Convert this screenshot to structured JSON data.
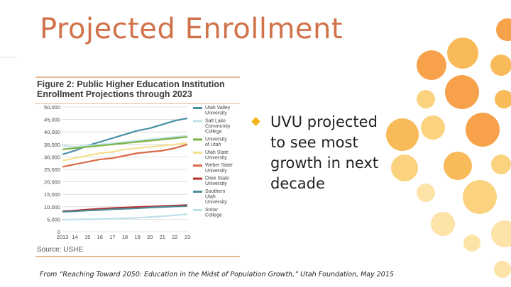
{
  "slide": {
    "title": "Projected Enrollment",
    "bullet": "UVU projected\nto see most\ngrowth in next\ndecade",
    "footnote": "From  “Reaching Toward 2050: Education in the Midst of Population Growth,”  Utah Foundation, May 2015"
  },
  "figure": {
    "title_line1": "Figure 2: Public Higher Education Institution",
    "title_line2": "Enrollment Projections through 2023",
    "source": "Source: USHE"
  },
  "colors": {
    "title": "#d0724a",
    "bullet_marker": "#f1b51c",
    "dot_palette": [
      "#f7a14a",
      "#f9bb5a",
      "#fbd27e",
      "#fde3a8"
    ]
  },
  "chart_data": {
    "type": "line",
    "title": "Figure 2: Public Higher Education Institution Enrollment Projections through 2023",
    "xlabel": "",
    "ylabel": "",
    "x": [
      2013,
      2014,
      2015,
      2016,
      2017,
      2018,
      2019,
      2020,
      2021,
      2022,
      2023
    ],
    "x_tick_labels": [
      "2013",
      "14",
      "15",
      "16",
      "17",
      "18",
      "19",
      "20",
      "21",
      "22",
      "23"
    ],
    "ylim": [
      0,
      50000
    ],
    "y_ticks": [
      0,
      5000,
      10000,
      15000,
      20000,
      25000,
      30000,
      35000,
      40000,
      45000,
      50000
    ],
    "y_tick_labels": [
      "0",
      "5,000",
      "10,000",
      "15,000",
      "20,000",
      "25,000",
      "30,000",
      "35,000",
      "40,000",
      "45,000",
      "50,000"
    ],
    "series": [
      {
        "name": "Utah Valley University",
        "legend": [
          "Utah Valley",
          "University"
        ],
        "color": "#4a90a6",
        "values": [
          31000,
          32500,
          34500,
          36000,
          37500,
          39000,
          40500,
          41500,
          43000,
          44500,
          45500
        ]
      },
      {
        "name": "Salt Lake Community College",
        "legend": [
          "Salt Lake",
          "Community",
          "College"
        ],
        "color": "#bfe0ea",
        "values": [
          34500,
          34000,
          34500,
          35000,
          35500,
          36000,
          36500,
          37000,
          37500,
          38000,
          38500
        ]
      },
      {
        "name": "University of Utah",
        "legend": [
          "University",
          "of Utah"
        ],
        "color": "#7cb342",
        "values": [
          33000,
          33500,
          34000,
          34500,
          35000,
          35500,
          36000,
          36500,
          37000,
          37500,
          38000
        ]
      },
      {
        "name": "Utah State University",
        "legend": [
          "Utah State",
          "University"
        ],
        "color": "#f3e08c",
        "values": [
          28500,
          29500,
          30500,
          31500,
          32000,
          33000,
          33500,
          34000,
          34500,
          35000,
          35500
        ]
      },
      {
        "name": "Weber State University",
        "legend": [
          "Weber State",
          "University"
        ],
        "color": "#d96a45",
        "values": [
          26000,
          27000,
          28000,
          29000,
          29500,
          30500,
          31500,
          32000,
          32500,
          33500,
          35000
        ]
      },
      {
        "name": "Dixie State University",
        "legend": [
          "Dixie State",
          "University"
        ],
        "color": "#b5302c",
        "values": [
          8200,
          8500,
          8900,
          9200,
          9500,
          9700,
          9900,
          10100,
          10300,
          10500,
          10700
        ]
      },
      {
        "name": "Southern Utah University",
        "legend": [
          "Southern",
          "Utah",
          "University"
        ],
        "color": "#4f8a9a",
        "values": [
          8000,
          8200,
          8500,
          8700,
          9000,
          9200,
          9400,
          9700,
          9900,
          10100,
          10300
        ]
      },
      {
        "name": "Snow College",
        "legend": [
          "Snow",
          "College"
        ],
        "color": "#bfe0ea",
        "values": [
          4800,
          4900,
          5000,
          5100,
          5200,
          5400,
          5600,
          5900,
          6200,
          6600,
          7000
        ]
      }
    ],
    "grid": true,
    "legend_position": "right"
  }
}
